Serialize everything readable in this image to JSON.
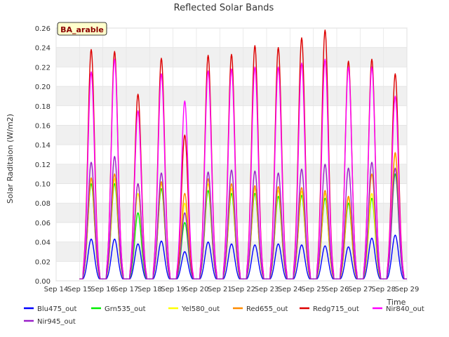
{
  "chart_data": {
    "type": "line",
    "title": "Reflected Solar Bands",
    "xlabel": "Time",
    "ylabel": "Solar Raditaion (W/m2)",
    "site_label": "BA_arable",
    "xlim": [
      14,
      29
    ],
    "ylim": [
      0,
      0.26
    ],
    "x_ticks": [
      14,
      15,
      16,
      17,
      18,
      19,
      20,
      21,
      22,
      23,
      24,
      25,
      26,
      27,
      28,
      29
    ],
    "x_tick_labels": [
      "Sep 14",
      "Sep 15",
      "Sep 16",
      "Sep 17",
      "Sep 18",
      "Sep 19",
      "Sep 20",
      "Sep 21",
      "Sep 22",
      "Sep 23",
      "Sep 24",
      "Sep 25",
      "Sep 26",
      "Sep 27",
      "Sep 28",
      "Sep 29"
    ],
    "y_ticks": [
      0,
      0.02,
      0.04,
      0.06,
      0.08,
      0.1,
      0.12,
      0.14,
      0.16,
      0.18,
      0.2,
      0.22,
      0.24,
      0.26
    ],
    "y_tick_labels": [
      "0.00",
      "0.02",
      "0.04",
      "0.06",
      "0.08",
      "0.10",
      "0.12",
      "0.14",
      "0.16",
      "0.18",
      "0.20",
      "0.22",
      "0.24",
      "0.26"
    ],
    "grid": true,
    "legend_position": "bottom",
    "day_centers": [
      15.5,
      16.5,
      17.5,
      18.5,
      19.5,
      20.5,
      21.5,
      22.5,
      23.5,
      24.5,
      25.5,
      26.5,
      27.5,
      28.5
    ],
    "series": [
      {
        "name": "Blu475_out",
        "color": "#0000ff",
        "daily_peak": [
          0.043,
          0.043,
          0.038,
          0.041,
          0.03,
          0.04,
          0.038,
          0.037,
          0.038,
          0.037,
          0.036,
          0.035,
          0.044,
          0.047
        ]
      },
      {
        "name": "Grn535_out",
        "color": "#00ee00",
        "daily_peak": [
          0.1,
          0.1,
          0.07,
          0.095,
          0.06,
          0.093,
          0.09,
          0.09,
          0.087,
          0.088,
          0.085,
          0.08,
          0.085,
          0.11
        ]
      },
      {
        "name": "Yel580_out",
        "color": "#ffff00",
        "daily_peak": [
          0.105,
          0.105,
          0.09,
          0.1,
          0.08,
          0.1,
          0.095,
          0.095,
          0.093,
          0.092,
          0.09,
          0.085,
          0.09,
          0.13
        ]
      },
      {
        "name": "Red655_out",
        "color": "#ff8c00",
        "daily_peak": [
          0.106,
          0.11,
          0.1,
          0.102,
          0.09,
          0.105,
          0.1,
          0.098,
          0.097,
          0.096,
          0.093,
          0.087,
          0.11,
          0.132
        ]
      },
      {
        "name": "Redg715_out",
        "color": "#dd0000",
        "daily_peak": [
          0.238,
          0.236,
          0.192,
          0.229,
          0.15,
          0.232,
          0.233,
          0.242,
          0.24,
          0.25,
          0.258,
          0.226,
          0.228,
          0.213
        ]
      },
      {
        "name": "Nir840_out",
        "color": "#ff00ff",
        "daily_peak": [
          0.215,
          0.228,
          0.175,
          0.213,
          0.185,
          0.216,
          0.218,
          0.22,
          0.22,
          0.224,
          0.228,
          0.22,
          0.22,
          0.19
        ]
      },
      {
        "name": "Nir945_out",
        "color": "#9a20c8",
        "daily_peak": [
          0.122,
          0.128,
          0.1,
          0.111,
          0.07,
          0.112,
          0.114,
          0.113,
          0.111,
          0.115,
          0.12,
          0.116,
          0.122,
          0.116
        ]
      }
    ]
  }
}
